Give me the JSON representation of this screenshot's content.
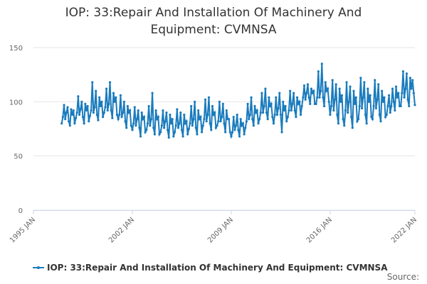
{
  "chart_data": {
    "type": "line",
    "title": "IOP: 33:Repair And Installation Of Machinery And Equipment: CVMNSA",
    "source": "Source:",
    "xlim": [
      "1995-01",
      "2022-01"
    ],
    "xticks": [
      {
        "value": "1995-01",
        "label": "1995 JAN"
      },
      {
        "value": "2002-01",
        "label": "2002 JAN"
      },
      {
        "value": "2009-01",
        "label": "2009 JAN"
      },
      {
        "value": "2016-01",
        "label": "2016 JAN"
      },
      {
        "value": "2022-01",
        "label": "2022 JAN"
      }
    ],
    "ylim": [
      0,
      150
    ],
    "yticks": [
      0,
      50,
      100,
      150
    ],
    "grid": true,
    "legend": "bottom",
    "x": [
      "1997-01",
      "1997-02",
      "1997-03",
      "1997-04",
      "1997-05",
      "1997-06",
      "1997-07",
      "1997-08",
      "1997-09",
      "1997-10",
      "1997-11",
      "1997-12",
      "1998-01",
      "1998-02",
      "1998-03",
      "1998-04",
      "1998-05",
      "1998-06",
      "1998-07",
      "1998-08",
      "1998-09",
      "1998-10",
      "1998-11",
      "1998-12",
      "1999-01",
      "1999-02",
      "1999-03",
      "1999-04",
      "1999-05",
      "1999-06",
      "1999-07",
      "1999-08",
      "1999-09",
      "1999-10",
      "1999-11",
      "1999-12",
      "2000-01",
      "2000-02",
      "2000-03",
      "2000-04",
      "2000-05",
      "2000-06",
      "2000-07",
      "2000-08",
      "2000-09",
      "2000-10",
      "2000-11",
      "2000-12",
      "2001-01",
      "2001-02",
      "2001-03",
      "2001-04",
      "2001-05",
      "2001-06",
      "2001-07",
      "2001-08",
      "2001-09",
      "2001-10",
      "2001-11",
      "2001-12",
      "2002-01",
      "2002-02",
      "2002-03",
      "2002-04",
      "2002-05",
      "2002-06",
      "2002-07",
      "2002-08",
      "2002-09",
      "2002-10",
      "2002-11",
      "2002-12",
      "2003-01",
      "2003-02",
      "2003-03",
      "2003-04",
      "2003-05",
      "2003-06",
      "2003-07",
      "2003-08",
      "2003-09",
      "2003-10",
      "2003-11",
      "2003-12",
      "2004-01",
      "2004-02",
      "2004-03",
      "2004-04",
      "2004-05",
      "2004-06",
      "2004-07",
      "2004-08",
      "2004-09",
      "2004-10",
      "2004-11",
      "2004-12",
      "2005-01",
      "2005-02",
      "2005-03",
      "2005-04",
      "2005-05",
      "2005-06",
      "2005-07",
      "2005-08",
      "2005-09",
      "2005-10",
      "2005-11",
      "2005-12",
      "2006-01",
      "2006-02",
      "2006-03",
      "2006-04",
      "2006-05",
      "2006-06",
      "2006-07",
      "2006-08",
      "2006-09",
      "2006-10",
      "2006-11",
      "2006-12",
      "2007-01",
      "2007-02",
      "2007-03",
      "2007-04",
      "2007-05",
      "2007-06",
      "2007-07",
      "2007-08",
      "2007-09",
      "2007-10",
      "2007-11",
      "2007-12",
      "2008-01",
      "2008-02",
      "2008-03",
      "2008-04",
      "2008-05",
      "2008-06",
      "2008-07",
      "2008-08",
      "2008-09",
      "2008-10",
      "2008-11",
      "2008-12",
      "2009-01",
      "2009-02",
      "2009-03",
      "2009-04",
      "2009-05",
      "2009-06",
      "2009-07",
      "2009-08",
      "2009-09",
      "2009-10",
      "2009-11",
      "2009-12",
      "2010-01",
      "2010-02",
      "2010-03",
      "2010-04",
      "2010-05",
      "2010-06",
      "2010-07",
      "2010-08",
      "2010-09",
      "2010-10",
      "2010-11",
      "2010-12",
      "2011-01",
      "2011-02",
      "2011-03",
      "2011-04",
      "2011-05",
      "2011-06",
      "2011-07",
      "2011-08",
      "2011-09",
      "2011-10",
      "2011-11",
      "2011-12",
      "2012-01",
      "2012-02",
      "2012-03",
      "2012-04",
      "2012-05",
      "2012-06",
      "2012-07",
      "2012-08",
      "2012-09",
      "2012-10",
      "2012-11",
      "2012-12",
      "2013-01",
      "2013-02",
      "2013-03",
      "2013-04",
      "2013-05",
      "2013-06",
      "2013-07",
      "2013-08",
      "2013-09",
      "2013-10",
      "2013-11",
      "2013-12",
      "2014-01",
      "2014-02",
      "2014-03",
      "2014-04",
      "2014-05",
      "2014-06",
      "2014-07",
      "2014-08",
      "2014-09",
      "2014-10",
      "2014-11",
      "2014-12",
      "2015-01",
      "2015-02",
      "2015-03",
      "2015-04",
      "2015-05",
      "2015-06",
      "2015-07",
      "2015-08",
      "2015-09",
      "2015-10",
      "2015-11",
      "2015-12",
      "2016-01",
      "2016-02",
      "2016-03",
      "2016-04",
      "2016-05",
      "2016-06",
      "2016-07",
      "2016-08",
      "2016-09",
      "2016-10",
      "2016-11",
      "2016-12",
      "2017-01",
      "2017-02",
      "2017-03",
      "2017-04",
      "2017-05",
      "2017-06",
      "2017-07",
      "2017-08",
      "2017-09",
      "2017-10",
      "2017-11",
      "2017-12",
      "2018-01",
      "2018-02",
      "2018-03",
      "2018-04",
      "2018-05",
      "2018-06",
      "2018-07",
      "2018-08",
      "2018-09",
      "2018-10",
      "2018-11",
      "2018-12",
      "2019-01",
      "2019-02",
      "2019-03",
      "2019-04",
      "2019-05",
      "2019-06",
      "2019-07",
      "2019-08",
      "2019-09",
      "2019-10",
      "2019-11",
      "2019-12",
      "2020-01",
      "2020-02",
      "2020-03",
      "2020-04",
      "2020-05",
      "2020-06",
      "2020-07",
      "2020-08",
      "2020-09",
      "2020-10",
      "2020-11",
      "2020-12",
      "2021-01",
      "2021-02",
      "2021-03",
      "2021-04",
      "2021-05",
      "2021-06",
      "2021-07",
      "2021-08",
      "2021-09",
      "2021-10",
      "2021-11",
      "2021-12",
      "2022-01"
    ],
    "series": [
      {
        "name": "IOP: 33:Repair And Installation Of Machinery And Equipment: CVMNSA",
        "color": "#1a7bbd",
        "values": [
          80,
          86,
          97,
          84,
          90,
          95,
          82,
          78,
          93,
          88,
          92,
          80,
          85,
          90,
          105,
          88,
          93,
          100,
          86,
          80,
          98,
          92,
          96,
          82,
          87,
          92,
          118,
          90,
          95,
          110,
          88,
          83,
          104,
          96,
          100,
          86,
          90,
          95,
          112,
          92,
          98,
          118,
          92,
          85,
          108,
          100,
          104,
          88,
          84,
          88,
          106,
          86,
          90,
          100,
          82,
          76,
          96,
          90,
          92,
          78,
          74,
          80,
          95,
          78,
          84,
          92,
          76,
          68,
          90,
          84,
          86,
          72,
          74,
          80,
          96,
          78,
          84,
          108,
          76,
          70,
          92,
          84,
          86,
          70,
          72,
          78,
          92,
          76,
          82,
          90,
          74,
          67,
          88,
          80,
          84,
          68,
          72,
          78,
          93,
          76,
          80,
          90,
          74,
          68,
          88,
          80,
          82,
          70,
          75,
          80,
          96,
          78,
          84,
          100,
          76,
          70,
          92,
          84,
          86,
          72,
          78,
          84,
          102,
          82,
          88,
          104,
          80,
          74,
          96,
          88,
          90,
          76,
          78,
          82,
          100,
          82,
          86,
          98,
          80,
          72,
          92,
          84,
          84,
          72,
          68,
          72,
          86,
          74,
          78,
          88,
          74,
          68,
          84,
          78,
          80,
          70,
          76,
          82,
          98,
          84,
          88,
          104,
          84,
          78,
          96,
          90,
          92,
          80,
          84,
          90,
          108,
          90,
          96,
          112,
          90,
          84,
          104,
          96,
          98,
          86,
          80,
          88,
          104,
          88,
          94,
          108,
          88,
          72,
          100,
          92,
          96,
          82,
          86,
          92,
          110,
          92,
          98,
          108,
          92,
          86,
          104,
          98,
          100,
          88,
          96,
          104,
          115,
          102,
          108,
          116,
          104,
          98,
          112,
          108,
          110,
          98,
          98,
          104,
          128,
          104,
          110,
          135,
          104,
          96,
          118,
          110,
          112,
          100,
          88,
          96,
          120,
          92,
          102,
          116,
          88,
          80,
          112,
          100,
          106,
          84,
          78,
          92,
          118,
          90,
          100,
          114,
          86,
          76,
          110,
          98,
          104,
          82,
          84,
          96,
          122,
          94,
          104,
          118,
          88,
          80,
          112,
          100,
          106,
          86,
          84,
          96,
          120,
          94,
          102,
          116,
          88,
          82,
          110,
          100,
          104,
          86,
          88,
          96,
          106,
          90,
          96,
          112,
          100,
          92,
          114,
          104,
          108,
          96,
          96,
          108,
          128,
          104,
          112,
          126,
          102,
          96,
          122,
          112,
          120,
          108,
          97
        ]
      }
    ]
  }
}
